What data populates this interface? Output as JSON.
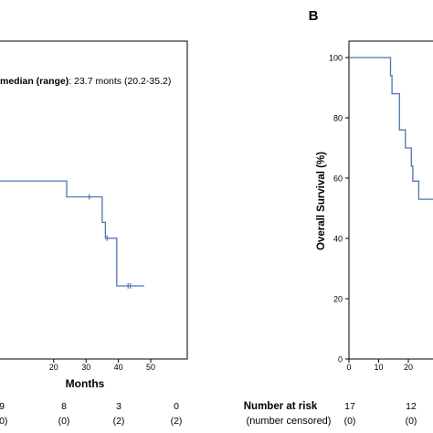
{
  "chart_data": [
    {
      "type": "line",
      "panel_label": "",
      "annotation": {
        "bold": "median (range)",
        "rest": ": 23.7 monts (20.2-35.2)"
      },
      "xlabel": "Months",
      "ylabel": "",
      "xlim": [
        0,
        50
      ],
      "ylim": [
        0,
        100
      ],
      "x_ticks": [
        "20",
        "30",
        "40",
        "50"
      ],
      "series": [
        {
          "steps": [
            [
              0,
              56
            ],
            [
              24,
              56
            ],
            [
              24,
              51
            ],
            [
              35,
              51
            ],
            [
              35,
              43
            ],
            [
              36,
              43
            ],
            [
              36,
              38
            ],
            [
              39.5,
              38
            ],
            [
              39.5,
              23
            ],
            [
              48,
              23
            ]
          ],
          "censors": [
            [
              31,
              51
            ],
            [
              36.5,
              38
            ],
            [
              43,
              23
            ],
            [
              43.7,
              23
            ]
          ]
        }
      ],
      "risk_table": {
        "at_risk": [
          "9",
          "8",
          "3",
          "0"
        ],
        "censored": [
          "(0)",
          "(0)",
          "(2)",
          "(2)"
        ]
      }
    },
    {
      "type": "line",
      "panel_label": "B",
      "xlabel": "",
      "ylabel": "Overall Survival (%)",
      "xlim": [
        0,
        50
      ],
      "ylim": [
        0,
        100
      ],
      "y_ticks": [
        "0",
        "20",
        "40",
        "60",
        "80",
        "100"
      ],
      "x_ticks": [
        "0",
        "10",
        "20"
      ],
      "series": [
        {
          "steps": [
            [
              0,
              100
            ],
            [
              14,
              100
            ],
            [
              14,
              94
            ],
            [
              14.5,
              94
            ],
            [
              14.5,
              88
            ],
            [
              17,
              88
            ],
            [
              17,
              76
            ],
            [
              19,
              76
            ],
            [
              19,
              70
            ],
            [
              21,
              70
            ],
            [
              21,
              64
            ],
            [
              21.5,
              64
            ],
            [
              21.5,
              59
            ],
            [
              23.5,
              59
            ],
            [
              23.5,
              53
            ],
            [
              30,
              53
            ]
          ],
          "censors": []
        }
      ],
      "risk_table": {
        "title": "Number at risk",
        "subtitle": "(number censored)",
        "at_risk": [
          "17",
          "12"
        ],
        "censored": [
          "(0)",
          "(0)"
        ]
      }
    }
  ]
}
